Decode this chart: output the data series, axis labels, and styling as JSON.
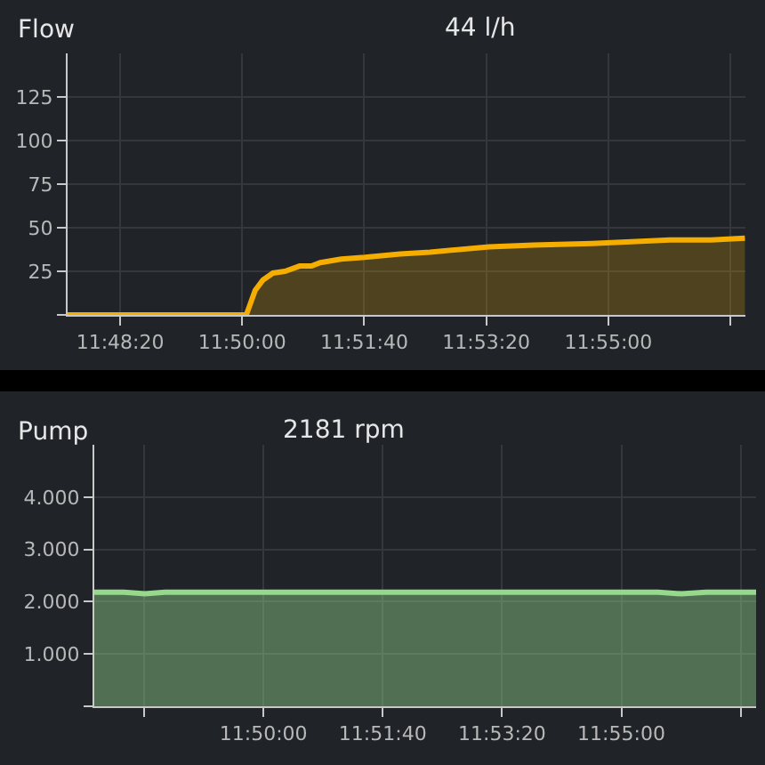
{
  "chart_data": [
    {
      "type": "area",
      "title": "Flow",
      "subtitle": "44 l/h",
      "color": "#f5ad00",
      "x": [
        11.79359,
        11.83426,
        11.83628,
        11.83806,
        11.84033,
        11.84304,
        11.84639,
        11.8491,
        11.85112,
        11.85585,
        11.86123,
        11.86932,
        11.87607,
        11.88953,
        11.89964,
        11.91298,
        11.92188,
        11.93065,
        11.94007,
        11.94775
      ],
      "values": [
        0,
        0,
        14,
        20,
        24,
        25,
        28,
        28,
        30,
        32,
        33,
        35,
        36,
        39,
        40,
        41,
        42,
        43,
        43,
        44
      ],
      "xlim": [
        11.79359,
        11.94787
      ],
      "ylim": [
        0,
        150
      ],
      "xticks": [
        {
          "value": 11.80556,
          "label": "11:48:20"
        },
        {
          "value": 11.83333,
          "label": "11:50:00"
        },
        {
          "value": 11.86111,
          "label": "11:51:40"
        },
        {
          "value": 11.88889,
          "label": "11:53:20"
        },
        {
          "value": 11.91667,
          "label": "11:55:00"
        },
        {
          "value": 11.94444,
          "label": null
        }
      ],
      "yticks": [
        {
          "value": 0,
          "label": null
        },
        25,
        50,
        75,
        100,
        125
      ],
      "grid": true
    },
    {
      "type": "area",
      "title": "Pump",
      "subtitle": "2181 rpm",
      "color": "#96d98d",
      "x": [
        11.79394,
        11.80087,
        11.80572,
        11.8104,
        11.92525,
        11.93076,
        11.93644,
        11.94805
      ],
      "values": [
        2180,
        2180,
        2150,
        2180,
        2180,
        2150,
        2180,
        2180
      ],
      "xlim": [
        11.79394,
        11.94805
      ],
      "ylim": [
        0,
        5000
      ],
      "xticks": [
        {
          "value": 11.80556,
          "label": null
        },
        {
          "value": 11.83333,
          "label": "11:50:00"
        },
        {
          "value": 11.86111,
          "label": "11:51:40"
        },
        {
          "value": 11.88889,
          "label": "11:53:20"
        },
        {
          "value": 11.91667,
          "label": "11:55:00"
        },
        {
          "value": 11.94444,
          "label": null
        }
      ],
      "yticks": [
        {
          "value": 0,
          "label": null
        },
        {
          "value": 1000,
          "label": "1.000"
        },
        {
          "value": 2000,
          "label": "2.000"
        },
        {
          "value": 3000,
          "label": "3.000"
        },
        {
          "value": 4000,
          "label": "4.000"
        }
      ],
      "grid": true
    }
  ]
}
